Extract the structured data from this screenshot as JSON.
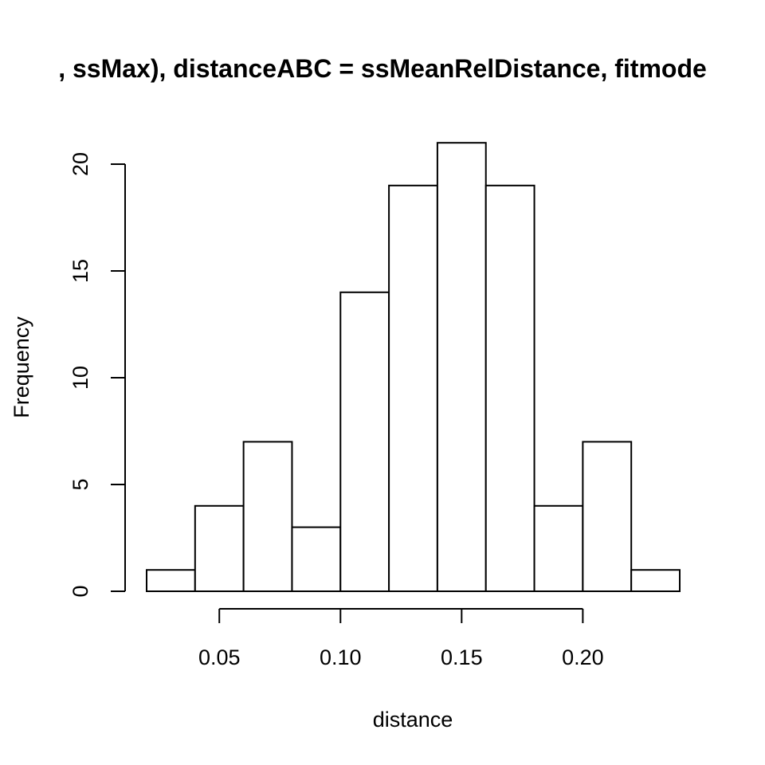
{
  "chart_data": {
    "type": "bar",
    "title": ", ssMax), distanceABC = ssMeanRelDistance, fitmode",
    "xlabel": "distance",
    "ylabel": "Frequency",
    "bins": [
      {
        "start": 0.02,
        "end": 0.04,
        "count": 1
      },
      {
        "start": 0.04,
        "end": 0.06,
        "count": 4
      },
      {
        "start": 0.06,
        "end": 0.08,
        "count": 7
      },
      {
        "start": 0.08,
        "end": 0.1,
        "count": 3
      },
      {
        "start": 0.1,
        "end": 0.12,
        "count": 14
      },
      {
        "start": 0.12,
        "end": 0.14,
        "count": 19
      },
      {
        "start": 0.14,
        "end": 0.16,
        "count": 21
      },
      {
        "start": 0.16,
        "end": 0.18,
        "count": 19
      },
      {
        "start": 0.18,
        "end": 0.2,
        "count": 4
      },
      {
        "start": 0.2,
        "end": 0.22,
        "count": 7
      },
      {
        "start": 0.22,
        "end": 0.24,
        "count": 1
      }
    ],
    "x_ticks": [
      {
        "value": 0.05,
        "label": "0.05"
      },
      {
        "value": 0.1,
        "label": "0.10"
      },
      {
        "value": 0.15,
        "label": "0.15"
      },
      {
        "value": 0.2,
        "label": "0.20"
      }
    ],
    "y_ticks": [
      {
        "value": 0,
        "label": "0"
      },
      {
        "value": 5,
        "label": "5"
      },
      {
        "value": 10,
        "label": "10"
      },
      {
        "value": 15,
        "label": "15"
      },
      {
        "value": 20,
        "label": "20"
      }
    ],
    "xlim": [
      0.02,
      0.24
    ],
    "ylim": [
      0,
      21
    ],
    "grid": false,
    "legend": "none"
  }
}
